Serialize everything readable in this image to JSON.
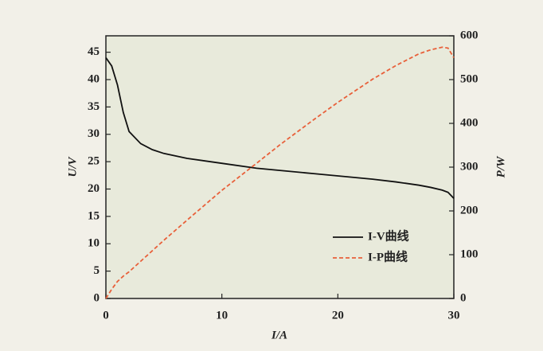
{
  "chart_data": {
    "type": "line",
    "xlabel": "I/A",
    "ylabel": "U/V",
    "y2label": "P/W",
    "x": [
      0,
      0.5,
      1,
      1.5,
      2,
      3,
      4,
      5,
      7,
      10,
      13,
      15,
      18,
      20,
      23,
      25,
      27,
      28,
      29,
      29.5,
      30
    ],
    "series": [
      {
        "name": "I-V曲线",
        "color": "#111111",
        "dash": false,
        "values": [
          44,
          42.5,
          39,
          34,
          30.5,
          28.3,
          27.2,
          26.5,
          25.6,
          24.7,
          23.8,
          23.4,
          22.8,
          22.4,
          21.8,
          21.3,
          20.7,
          20.3,
          19.8,
          19.4,
          18.3
        ]
      },
      {
        "name": "I-P曲线",
        "color": "#e8603a",
        "dash": true,
        "axis": "y2",
        "values": [
          0,
          21,
          39,
          51,
          61,
          85,
          109,
          133,
          179,
          247,
          309,
          351,
          410,
          448,
          501,
          532,
          559,
          568,
          574,
          572,
          550
        ]
      }
    ],
    "xlim": [
      0,
      30
    ],
    "xticks": [
      0,
      10,
      20,
      30
    ],
    "ylim": [
      0,
      48
    ],
    "yticks": [
      0,
      5,
      10,
      15,
      20,
      25,
      30,
      35,
      40,
      45
    ],
    "y2lim": [
      0,
      600
    ],
    "y2ticks": [
      0,
      100,
      200,
      300,
      400,
      500,
      600
    ],
    "grid": false,
    "legend": "lower right"
  }
}
